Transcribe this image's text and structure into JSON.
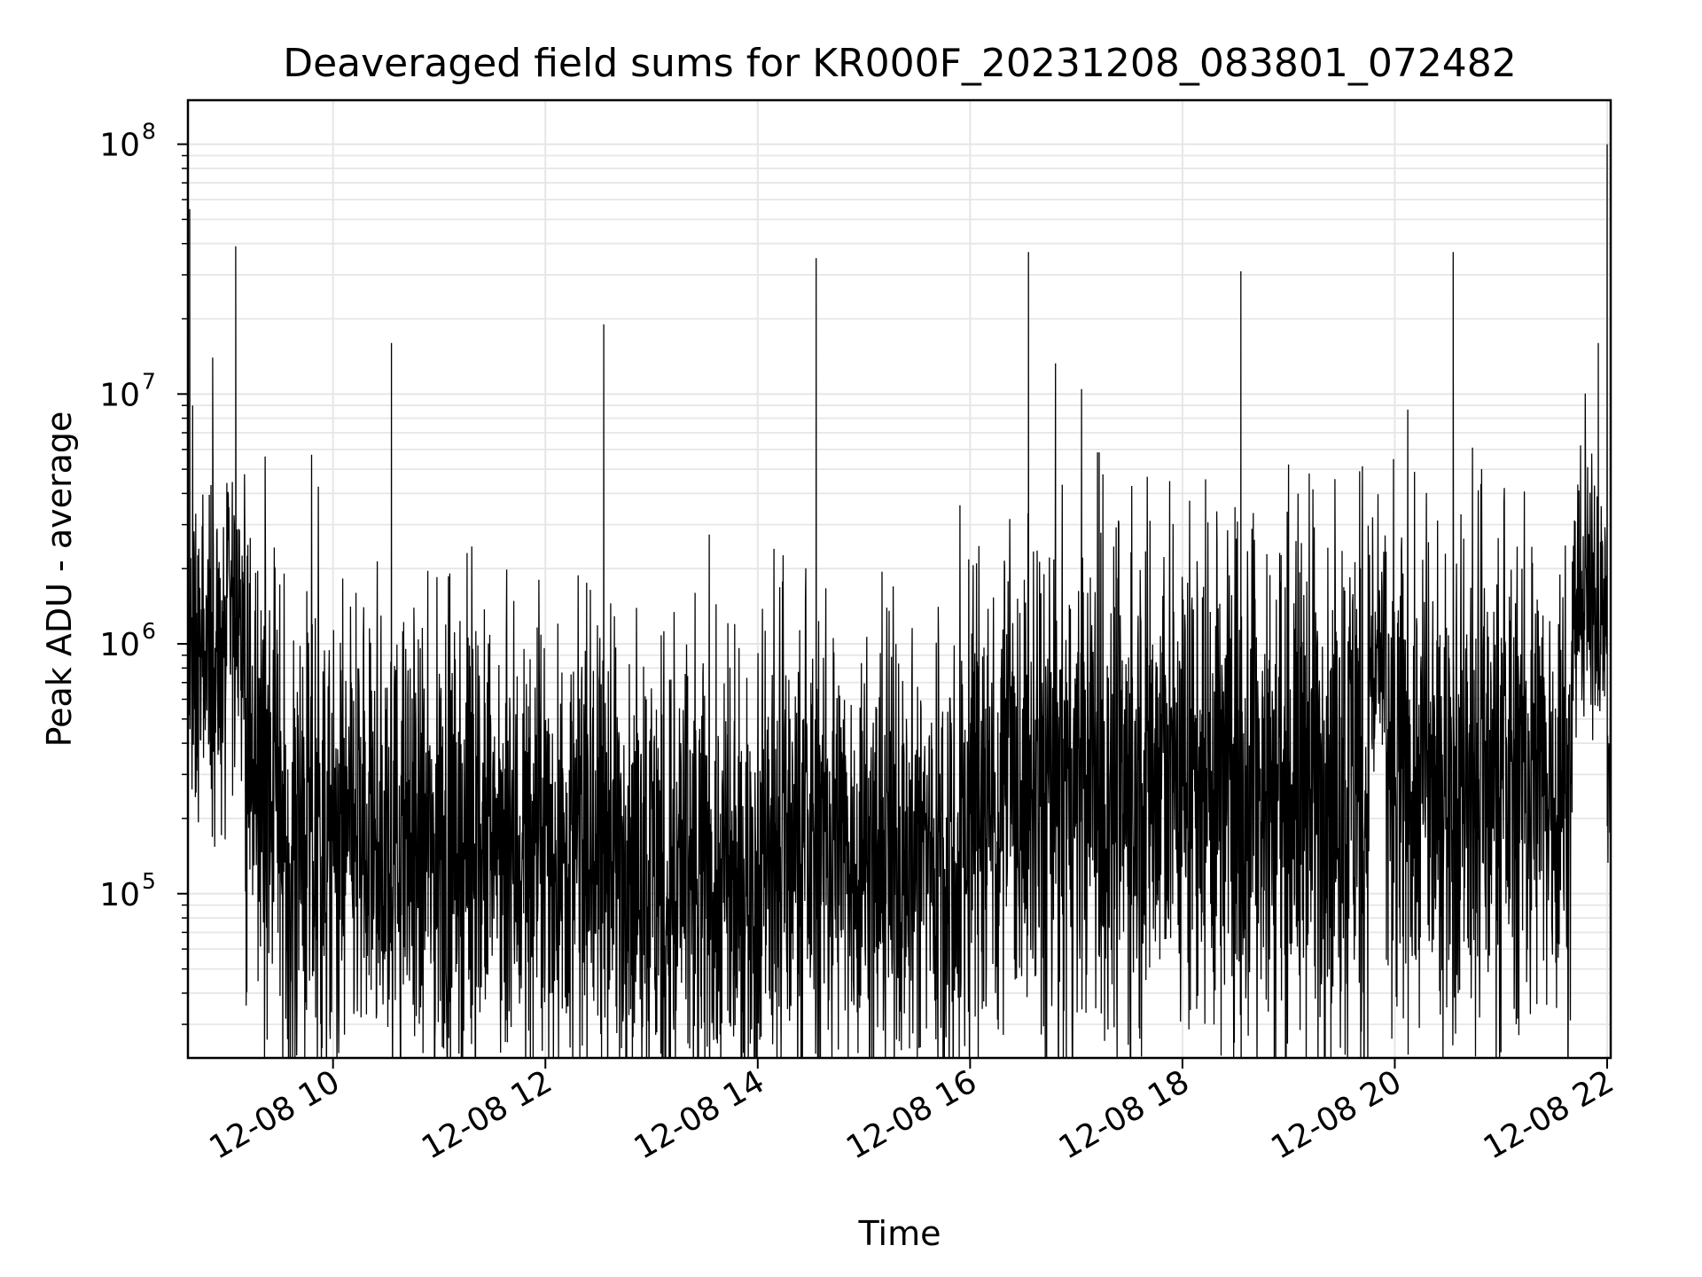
{
  "chart_data": {
    "type": "line",
    "title": "Deaveraged field sums for KR000F_20231208_083801_072482",
    "xlabel": "Time",
    "ylabel": "Peak ADU - average",
    "y_scale": "log",
    "ylim": [
      22000,
      150000000
    ],
    "x_range": [
      "2023-12-08 08:38",
      "2023-12-08 22:02"
    ],
    "grid": true,
    "x_tick_labels": [
      "12-08 10",
      "12-08 12",
      "12-08 14",
      "12-08 16",
      "12-08 18",
      "12-08 20",
      "12-08 22"
    ],
    "x_tick_hours": [
      10,
      12,
      14,
      16,
      18,
      20,
      22
    ],
    "y_tick_labels": [
      {
        "base": "10",
        "exp": "5",
        "value": 100000
      },
      {
        "base": "10",
        "exp": "6",
        "value": 1000000
      },
      {
        "base": "10",
        "exp": "7",
        "value": 10000000
      },
      {
        "base": "10",
        "exp": "8",
        "value": 100000000
      }
    ],
    "series": [
      {
        "color": "#000000",
        "baseline_segments": [
          {
            "start": "08:38",
            "end": "09:00",
            "value": 800000,
            "spread": 0.35
          },
          {
            "start": "09:00",
            "end": "09:10",
            "value": 1300000,
            "spread": 0.3
          },
          {
            "start": "09:10",
            "end": "09:30",
            "value": 300000,
            "spread": 0.45
          },
          {
            "start": "09:30",
            "end": "13:00",
            "value": 150000,
            "spread": 0.45
          },
          {
            "start": "13:00",
            "end": "14:00",
            "value": 110000,
            "spread": 0.45
          },
          {
            "start": "14:00",
            "end": "16:00",
            "value": 150000,
            "spread": 0.45
          },
          {
            "start": "16:00",
            "end": "17:30",
            "value": 250000,
            "spread": 0.5
          },
          {
            "start": "17:30",
            "end": "19:45",
            "value": 300000,
            "spread": 0.55
          },
          {
            "start": "19:45",
            "end": "19:55",
            "value": 800000,
            "spread": 0.25
          },
          {
            "start": "19:55",
            "end": "21:40",
            "value": 280000,
            "spread": 0.5
          },
          {
            "start": "21:40",
            "end": "22:00",
            "value": 1500000,
            "spread": 0.25
          },
          {
            "start": "22:00",
            "end": "22:02",
            "value": 300000,
            "spread": 0.2
          }
        ],
        "peaks": [
          {
            "time": "08:39",
            "value": 55000000
          },
          {
            "time": "08:52",
            "value": 14000000
          },
          {
            "time": "09:05",
            "value": 39000000
          },
          {
            "time": "10:13",
            "value": 1600000
          },
          {
            "time": "10:33",
            "value": 16000000
          },
          {
            "time": "12:33",
            "value": 19000000
          },
          {
            "time": "13:47",
            "value": 1200000
          },
          {
            "time": "14:33",
            "value": 35000000
          },
          {
            "time": "16:33",
            "value": 37000000
          },
          {
            "time": "18:33",
            "value": 31000000
          },
          {
            "time": "20:33",
            "value": 37000000
          },
          {
            "time": "21:55",
            "value": 16000000
          },
          {
            "time": "22:00",
            "value": 100000000
          }
        ],
        "dips": [
          {
            "time": "13:43",
            "value": 34000.0
          },
          {
            "time": "14:53",
            "value": 37000
          }
        ]
      }
    ]
  }
}
